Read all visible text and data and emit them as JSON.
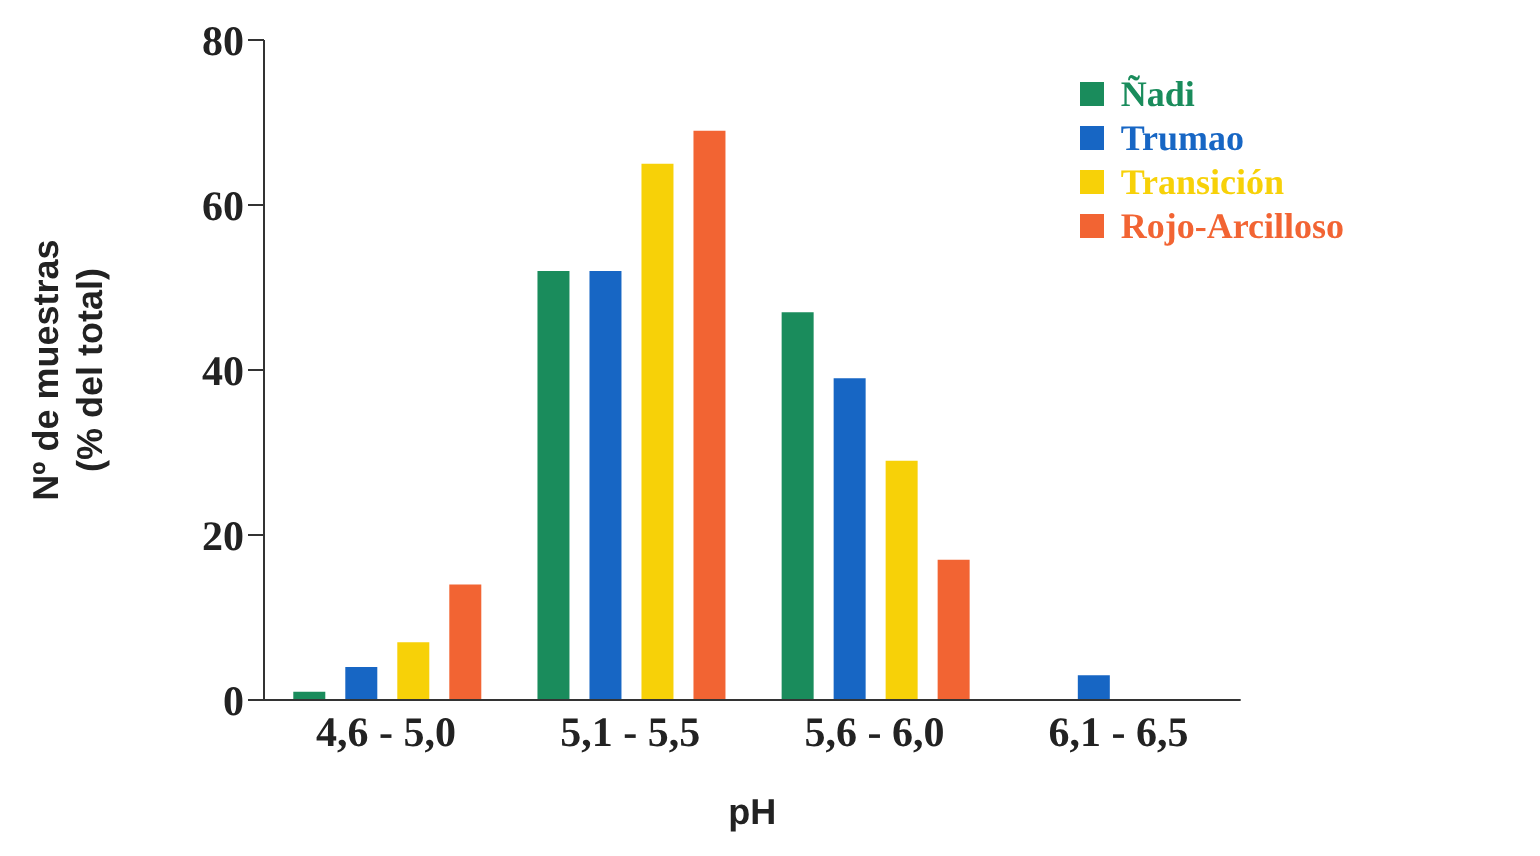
{
  "chart_data": {
    "type": "bar",
    "xlabel": "pH",
    "ylabel": "Nº de muestras\n(% del total)",
    "categories": [
      "4,6 - 5,0",
      "5,1 - 5,5",
      "5,6 - 6,0",
      "6,1 - 6,5"
    ],
    "series": [
      {
        "name": "Ñadi",
        "color": "#1a8c5c",
        "values": [
          1,
          52,
          47,
          0
        ]
      },
      {
        "name": "Trumao",
        "color": "#1766c4",
        "values": [
          4,
          52,
          39,
          3
        ]
      },
      {
        "name": "Transición",
        "color": "#f7d108",
        "values": [
          7,
          65,
          29,
          0
        ]
      },
      {
        "name": "Rojo-Arcilloso",
        "color": "#f26433",
        "values": [
          14,
          69,
          17,
          0
        ]
      }
    ],
    "ylim": [
      0,
      80
    ],
    "yticks": [
      0,
      20,
      40,
      60,
      80
    ],
    "grid": false,
    "legend": "top right"
  }
}
